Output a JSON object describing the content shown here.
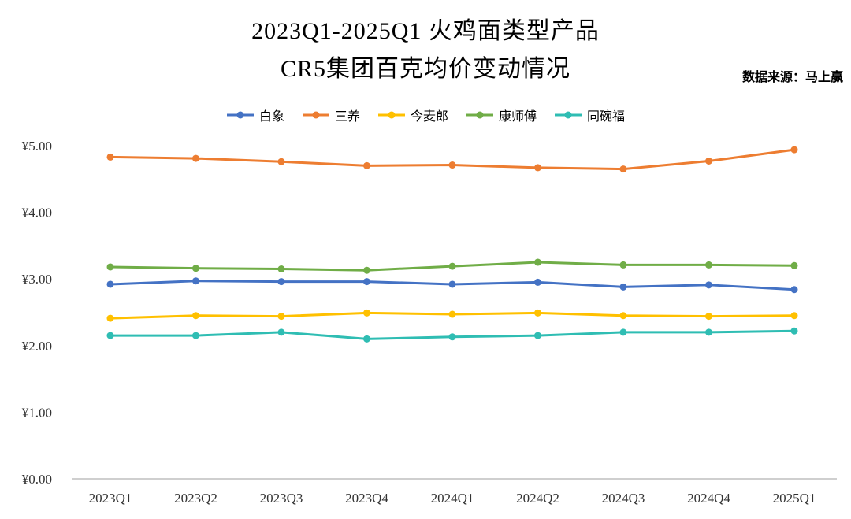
{
  "title": {
    "line1": "2023Q1-2025Q1 火鸡面类型产品",
    "line2": "CR5集团百克均价变动情况"
  },
  "source": "数据来源：马上赢",
  "chart_data": {
    "type": "line",
    "title": "2023Q1-2025Q1 火鸡面类型产品 CR5集团百克均价变动情况",
    "categories": [
      "2023Q1",
      "2023Q2",
      "2023Q3",
      "2023Q4",
      "2024Q1",
      "2024Q2",
      "2024Q3",
      "2024Q4",
      "2025Q1"
    ],
    "series": [
      {
        "name": "白象",
        "color": "#4472C4",
        "values": [
          2.92,
          2.97,
          2.96,
          2.96,
          2.92,
          2.95,
          2.88,
          2.91,
          2.84
        ]
      },
      {
        "name": "三养",
        "color": "#ED7D31",
        "values": [
          4.83,
          4.81,
          4.76,
          4.7,
          4.71,
          4.67,
          4.65,
          4.77,
          4.94
        ]
      },
      {
        "name": "今麦郎",
        "color": "#FFC000",
        "values": [
          2.41,
          2.45,
          2.44,
          2.49,
          2.47,
          2.49,
          2.45,
          2.44,
          2.45
        ]
      },
      {
        "name": "康师傅",
        "color": "#70AD47",
        "values": [
          3.18,
          3.16,
          3.15,
          3.13,
          3.19,
          3.25,
          3.21,
          3.21,
          3.2
        ]
      },
      {
        "name": "同碗福",
        "color": "#2FBDB3",
        "values": [
          2.15,
          2.15,
          2.2,
          2.1,
          2.13,
          2.15,
          2.2,
          2.2,
          2.22
        ]
      }
    ],
    "ylabel": "",
    "xlabel": "",
    "ylim": [
      0,
      5
    ],
    "ytick_step": 1,
    "ytick_prefix": "¥",
    "ytick_decimals": 2,
    "legend_position": "top",
    "grid": false,
    "axis_color": "#BFBFBF"
  }
}
